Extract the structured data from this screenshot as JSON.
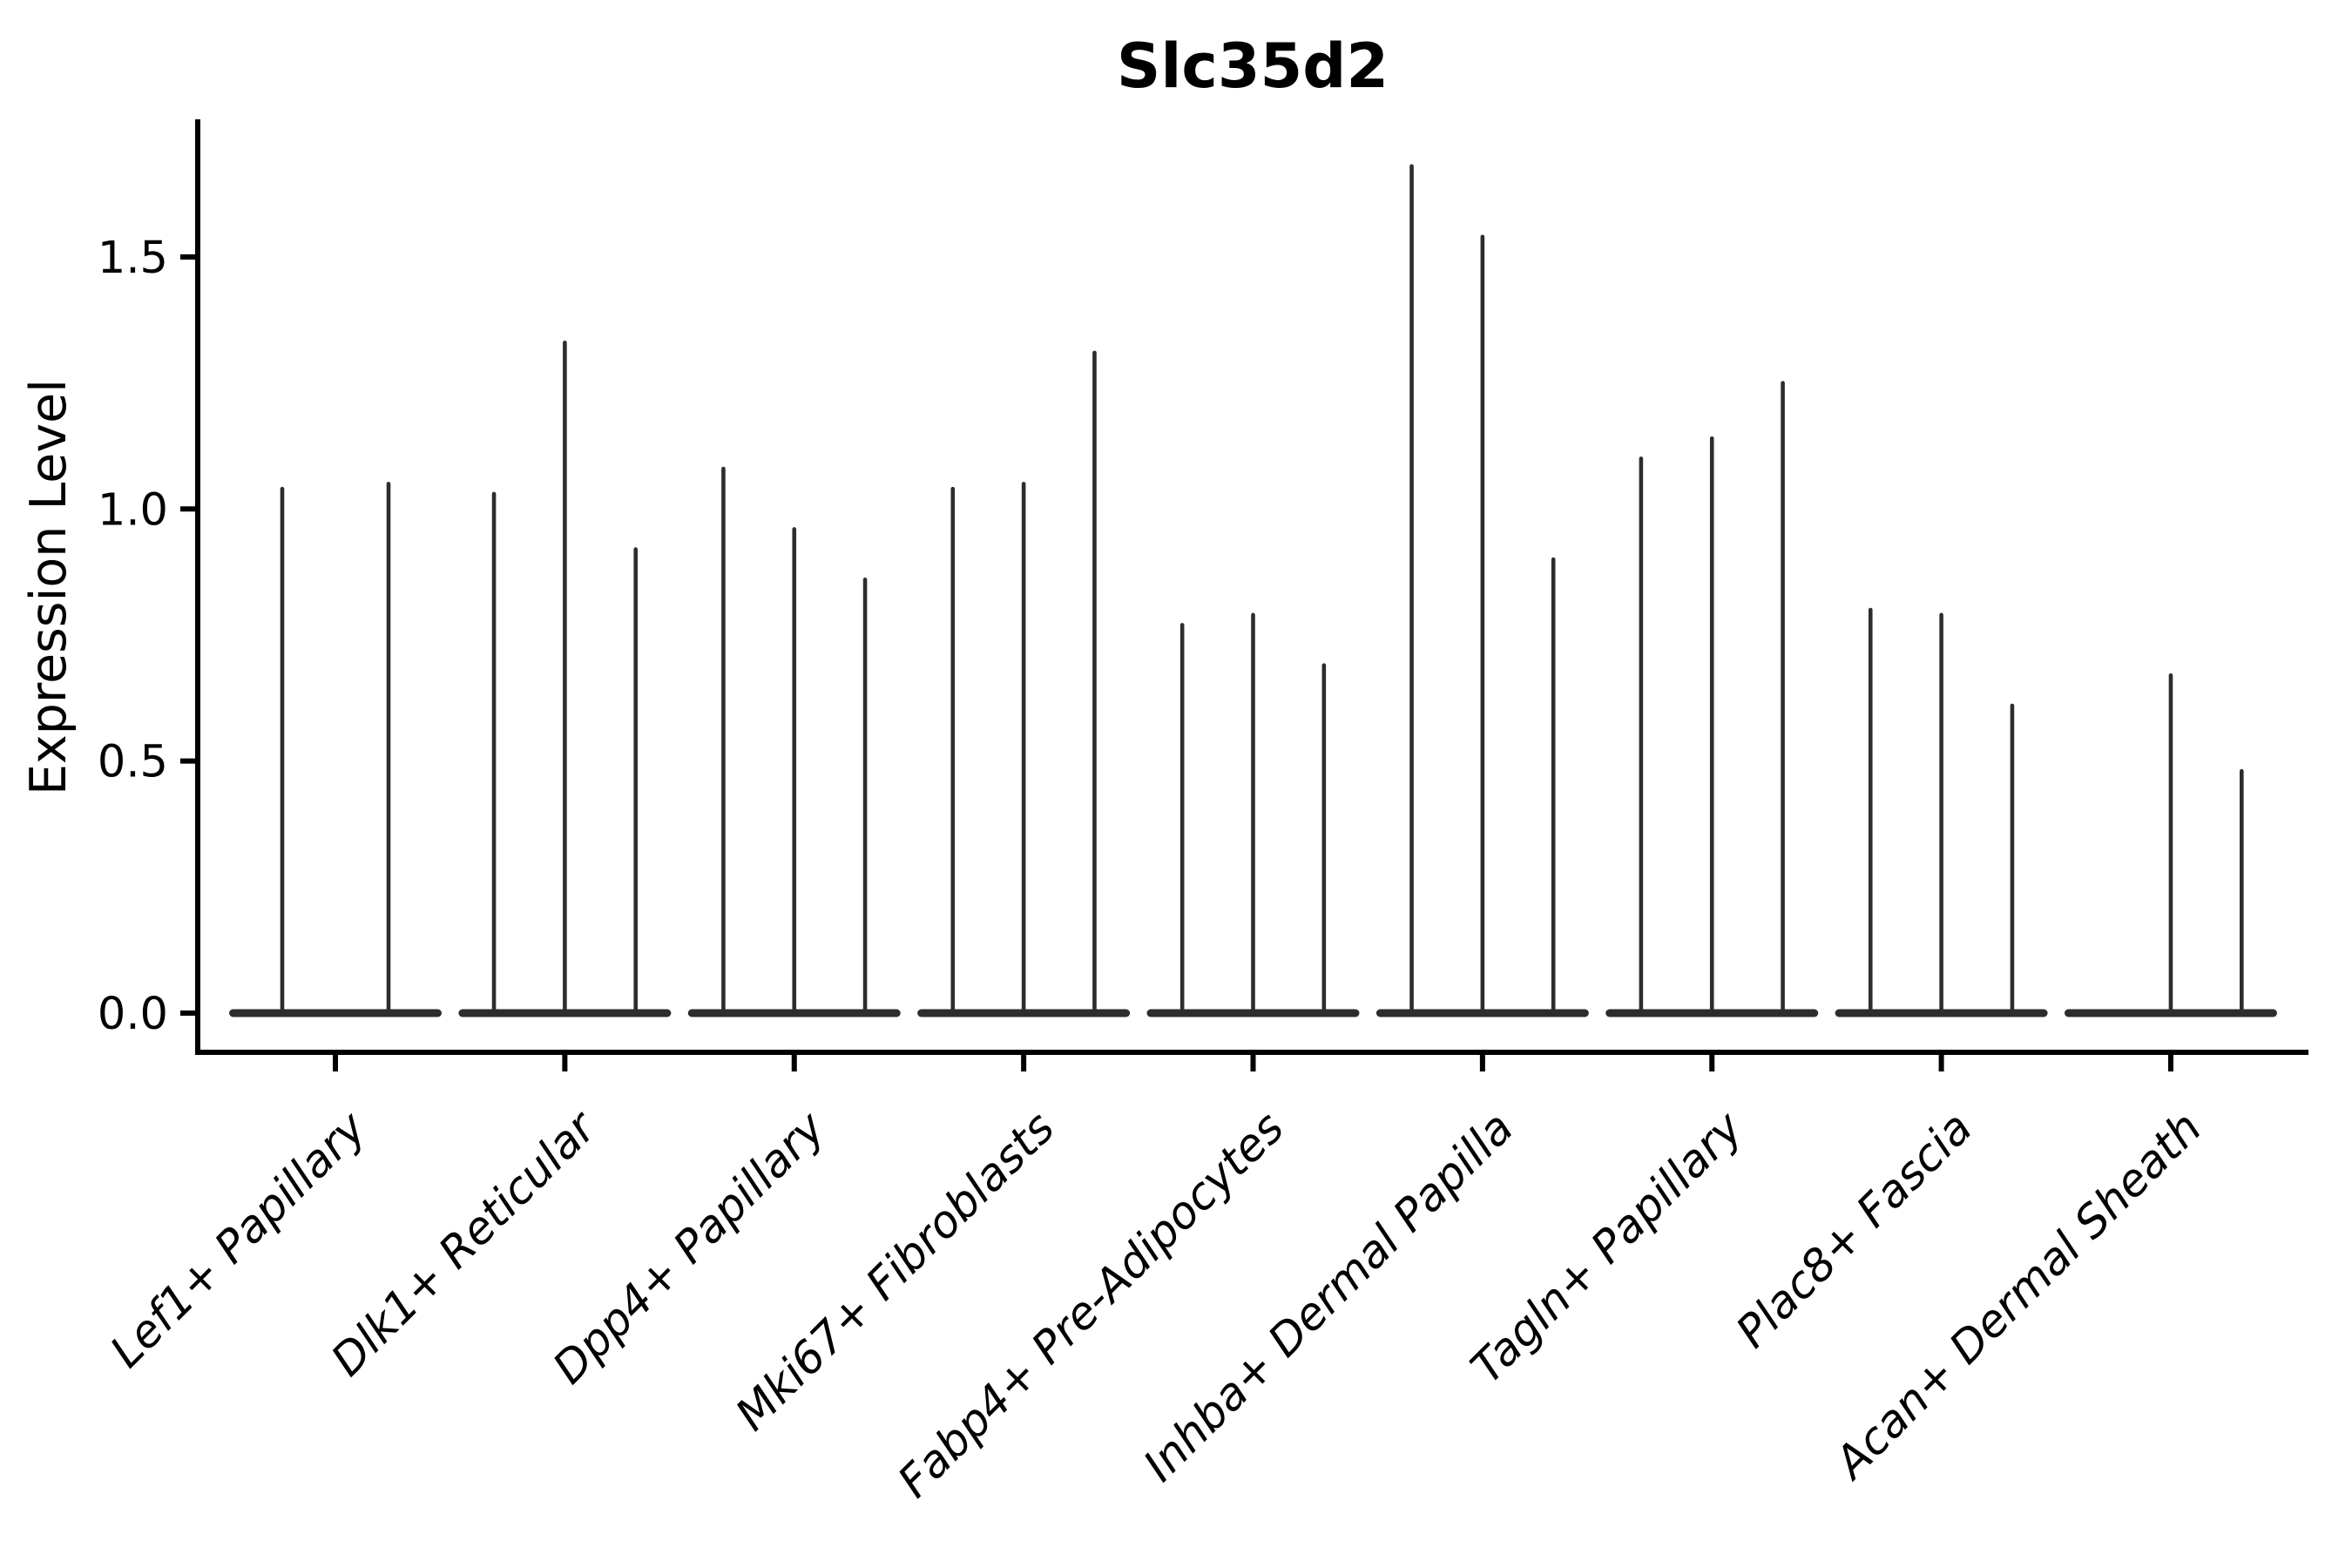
{
  "chart_data": {
    "type": "violin",
    "title": "Slc35d2",
    "xlabel": "",
    "ylabel": "Expression Level",
    "ylim": [
      -0.078,
      1.768
    ],
    "yticks": [
      0.0,
      0.5,
      1.0,
      1.5
    ],
    "ytick_labels": [
      "0.0",
      "0.5",
      "1.0",
      "1.5"
    ],
    "grid": false,
    "legend": "none",
    "categories": [
      "Lef1+ Papillary",
      "Dlk1+ Reticular",
      "Dpp4+ Papillary",
      "Mki67+ Fibroblasts",
      "Fabp4+ Pre-Adipocytes",
      "Inhba+ Dermal Papilla",
      "Tagln+ Papillary",
      "Plac8+ Fascia",
      "Acan+ Dermal Sheath"
    ],
    "groups": [
      {
        "label": "Lef1+ Papillary",
        "slots": 2,
        "violins": [
          {
            "slot": 0,
            "max": 1.04
          },
          {
            "slot": 1,
            "max": 1.05
          }
        ]
      },
      {
        "label": "Dlk1+ Reticular",
        "slots": 3,
        "violins": [
          {
            "slot": 0,
            "max": 1.03
          },
          {
            "slot": 1,
            "max": 1.33
          },
          {
            "slot": 2,
            "max": 0.92
          }
        ]
      },
      {
        "label": "Dpp4+ Papillary",
        "slots": 3,
        "violins": [
          {
            "slot": 0,
            "max": 1.08
          },
          {
            "slot": 1,
            "max": 0.96
          },
          {
            "slot": 2,
            "max": 0.86
          }
        ]
      },
      {
        "label": "Mki67+ Fibroblasts",
        "slots": 3,
        "violins": [
          {
            "slot": 0,
            "max": 1.04
          },
          {
            "slot": 1,
            "max": 1.05
          },
          {
            "slot": 2,
            "max": 1.31
          }
        ]
      },
      {
        "label": "Fabp4+ Pre-Adipocytes",
        "slots": 3,
        "violins": [
          {
            "slot": 0,
            "max": 0.77
          },
          {
            "slot": 1,
            "max": 0.79
          },
          {
            "slot": 2,
            "max": 0.69
          }
        ]
      },
      {
        "label": "Inhba+ Dermal Papilla",
        "slots": 3,
        "violins": [
          {
            "slot": 0,
            "max": 1.68
          },
          {
            "slot": 1,
            "max": 1.54
          },
          {
            "slot": 2,
            "max": 0.9
          }
        ]
      },
      {
        "label": "Tagln+ Papillary",
        "slots": 3,
        "violins": [
          {
            "slot": 0,
            "max": 1.1
          },
          {
            "slot": 1,
            "max": 1.14
          },
          {
            "slot": 2,
            "max": 1.25
          }
        ]
      },
      {
        "label": "Plac8+ Fascia",
        "slots": 3,
        "violins": [
          {
            "slot": 0,
            "max": 0.8
          },
          {
            "slot": 1,
            "max": 0.79
          },
          {
            "slot": 2,
            "max": 0.61
          }
        ]
      },
      {
        "label": "Acan+ Dermal Sheath",
        "slots": 3,
        "violins": [
          {
            "slot": 1,
            "max": 0.67
          },
          {
            "slot": 2,
            "max": 0.48
          }
        ]
      }
    ],
    "colors": {
      "violin": "#2d2d2d",
      "axis": "#000000",
      "background": "#ffffff"
    }
  }
}
